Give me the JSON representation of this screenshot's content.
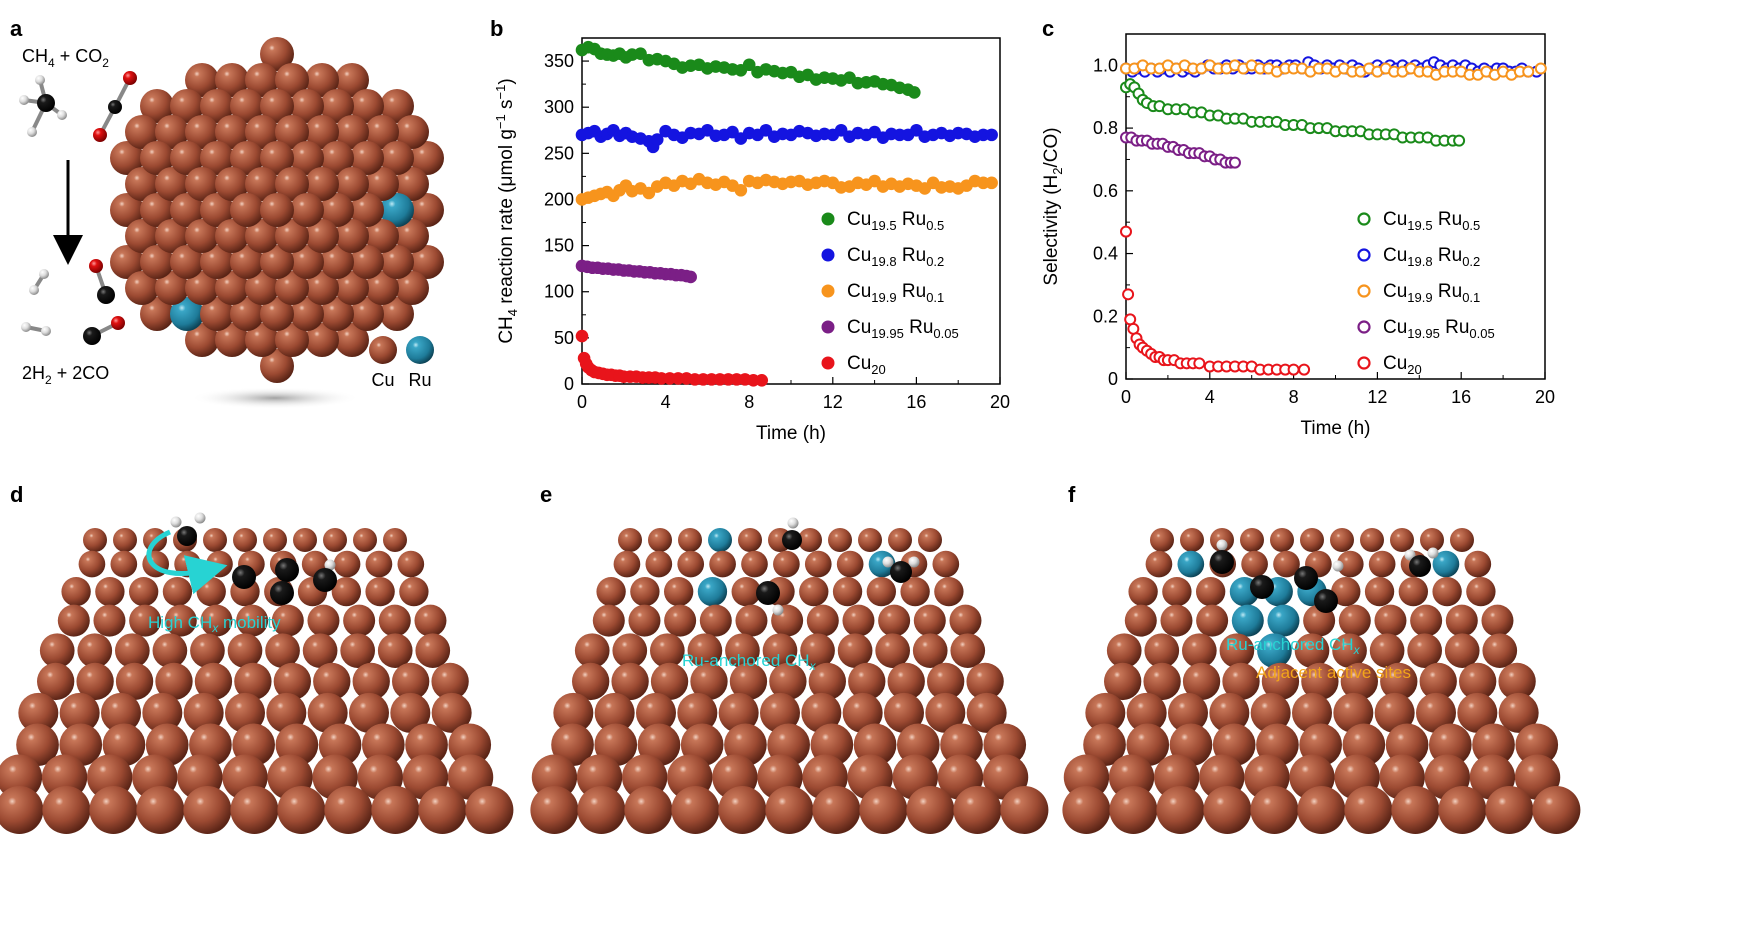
{
  "panels": {
    "a": "a",
    "b": "b",
    "c": "c",
    "d": "d",
    "e": "e",
    "f": "f"
  },
  "panel_a": {
    "reactants_main": "CH",
    "reactants_sub": "4",
    "reactants_rest": " + CO",
    "reactants_sub2": "2",
    "products_main": "2H",
    "products_sub": "2",
    "products_rest": " + 2CO",
    "legend_cu": "Cu",
    "legend_ru": "Ru"
  },
  "panel_d": {
    "label_main": "High CH",
    "label_sub": "x",
    "label_rest": " mobility"
  },
  "panel_e": {
    "label_main": "Ru-anchored CH",
    "label_sub": "x"
  },
  "panel_f": {
    "label_main": "Ru-anchored CH",
    "label_sub": "x",
    "label_2": "Adjacent active sites"
  },
  "colors": {
    "cu": "#a8523a",
    "ru": "#2c8fb0",
    "carbon": "#111111",
    "oxygen": "#e01010",
    "hydrogen": "#e8e8e8",
    "green": "#1a8a1a",
    "blue": "#1414e0",
    "orange": "#f7941d",
    "purple": "#7b1f86",
    "red": "#e8141b",
    "annotation_cyan": "#27d3d3",
    "annotation_gold": "#f2a51a"
  },
  "chart_data": [
    {
      "panel": "b",
      "type": "scatter",
      "xlabel": "Time (h)",
      "ylabel": "CH4 reaction rate (μmol g−1 s−1)",
      "xlim": [
        0,
        20
      ],
      "ylim": [
        0,
        375
      ],
      "xticks": [
        "0",
        "4",
        "8",
        "12",
        "16",
        "20"
      ],
      "yticks": [
        "0",
        "50",
        "100",
        "150",
        "200",
        "250",
        "300",
        "350"
      ],
      "marker": "filled",
      "legend_position": "right",
      "series": [
        {
          "name": "Cu19.5 Ru0.5",
          "base": "Cu",
          "sub1": "19.5",
          "el2": " Ru",
          "sub2": "0.5",
          "color": "#1a8a1a",
          "x": [
            0,
            0.3,
            0.6,
            0.9,
            1.2,
            1.5,
            1.8,
            2.1,
            2.4,
            2.8,
            3.2,
            3.6,
            4.0,
            4.4,
            4.8,
            5.2,
            5.6,
            6.0,
            6.4,
            6.8,
            7.2,
            7.6,
            8.0,
            8.4,
            8.8,
            9.2,
            9.6,
            10.0,
            10.4,
            10.8,
            11.2,
            11.6,
            12.0,
            12.4,
            12.8,
            13.2,
            13.6,
            14.0,
            14.4,
            14.8,
            15.2,
            15.6,
            15.9
          ],
          "y": [
            362,
            365,
            363,
            358,
            357,
            356,
            358,
            354,
            357,
            358,
            351,
            352,
            350,
            347,
            343,
            345,
            346,
            342,
            344,
            343,
            341,
            340,
            346,
            338,
            341,
            339,
            337,
            338,
            333,
            335,
            330,
            332,
            331,
            329,
            332,
            326,
            327,
            328,
            325,
            324,
            321,
            319,
            316
          ]
        },
        {
          "name": "Cu19.8 Ru0.2",
          "base": "Cu",
          "sub1": "19.8",
          "el2": " Ru",
          "sub2": "0.2",
          "color": "#1414e0",
          "x": [
            0,
            0.3,
            0.6,
            0.9,
            1.2,
            1.5,
            1.8,
            2.1,
            2.4,
            2.8,
            3.2,
            3.4,
            3.6,
            4.0,
            4.4,
            4.8,
            5.2,
            5.6,
            6.0,
            6.4,
            6.8,
            7.2,
            7.6,
            8.0,
            8.4,
            8.8,
            9.2,
            9.6,
            10.0,
            10.4,
            10.8,
            11.2,
            11.6,
            12.0,
            12.4,
            12.8,
            13.2,
            13.6,
            14.0,
            14.4,
            14.8,
            15.2,
            15.6,
            16.0,
            16.4,
            16.8,
            17.2,
            17.6,
            18.0,
            18.4,
            18.8,
            19.2,
            19.6
          ],
          "y": [
            270,
            272,
            274,
            268,
            271,
            275,
            269,
            272,
            268,
            266,
            263,
            257,
            265,
            274,
            270,
            267,
            272,
            271,
            275,
            269,
            270,
            273,
            266,
            272,
            270,
            275,
            268,
            271,
            270,
            274,
            272,
            269,
            271,
            270,
            275,
            268,
            272,
            270,
            273,
            267,
            271,
            270,
            270,
            275,
            268,
            270,
            272,
            269,
            272,
            271,
            268,
            270,
            270
          ]
        },
        {
          "name": "Cu19.9 Ru0.1",
          "base": "Cu",
          "sub1": "19.9",
          "el2": " Ru",
          "sub2": "0.1",
          "color": "#f7941d",
          "x": [
            0,
            0.3,
            0.6,
            0.9,
            1.2,
            1.5,
            1.8,
            2.1,
            2.4,
            2.8,
            3.2,
            3.6,
            4.0,
            4.4,
            4.8,
            5.2,
            5.6,
            6.0,
            6.4,
            6.8,
            7.2,
            7.6,
            8.0,
            8.4,
            8.8,
            9.2,
            9.6,
            10.0,
            10.4,
            10.8,
            11.2,
            11.6,
            12.0,
            12.4,
            12.8,
            13.2,
            13.6,
            14.0,
            14.4,
            14.8,
            15.2,
            15.6,
            16.0,
            16.4,
            16.8,
            17.2,
            17.6,
            18.0,
            18.4,
            18.8,
            19.2,
            19.6
          ],
          "y": [
            200,
            202,
            204,
            206,
            208,
            204,
            210,
            215,
            209,
            212,
            207,
            214,
            218,
            215,
            220,
            217,
            222,
            218,
            216,
            219,
            215,
            210,
            220,
            218,
            221,
            219,
            217,
            219,
            220,
            216,
            218,
            220,
            218,
            213,
            214,
            218,
            216,
            220,
            214,
            217,
            214,
            217,
            215,
            212,
            218,
            213,
            214,
            212,
            215,
            220,
            218,
            218
          ]
        },
        {
          "name": "Cu19.95 Ru0.05",
          "base": "Cu",
          "sub1": "19.95",
          "el2": " Ru",
          "sub2": "0.05",
          "color": "#7b1f86",
          "x": [
            0,
            0.25,
            0.5,
            0.75,
            1.0,
            1.25,
            1.5,
            1.75,
            2.0,
            2.25,
            2.5,
            2.75,
            3.0,
            3.25,
            3.5,
            3.75,
            4.0,
            4.25,
            4.5,
            4.75,
            5.0,
            5.2
          ],
          "y": [
            128,
            127,
            126,
            126,
            125,
            125,
            124,
            124,
            123,
            123,
            122,
            122,
            121,
            121,
            120,
            120,
            119,
            119,
            118,
            118,
            117,
            116
          ]
        },
        {
          "name": "Cu20",
          "base": "Cu",
          "sub1": "20",
          "el2": "",
          "sub2": "",
          "color": "#e8141b",
          "x": [
            0,
            0.1,
            0.2,
            0.3,
            0.45,
            0.6,
            0.8,
            1.0,
            1.2,
            1.4,
            1.6,
            1.8,
            2.0,
            2.3,
            2.6,
            2.9,
            3.2,
            3.5,
            3.8,
            4.2,
            4.6,
            5.0,
            5.4,
            5.8,
            6.2,
            6.6,
            7.0,
            7.4,
            7.8,
            8.2,
            8.6
          ],
          "y": [
            52,
            28,
            22,
            18,
            15,
            13,
            12,
            11,
            10,
            10,
            9,
            9,
            8,
            8,
            8,
            7,
            7,
            7,
            6,
            6,
            6,
            6,
            5,
            5,
            5,
            5,
            5,
            5,
            5,
            4,
            4
          ]
        }
      ]
    },
    {
      "panel": "c",
      "type": "scatter",
      "xlabel": "Time (h)",
      "ylabel": "Selectivity (H2/CO)",
      "xlim": [
        0,
        20
      ],
      "ylim": [
        0,
        1.1
      ],
      "xticks": [
        "0",
        "4",
        "8",
        "12",
        "16",
        "20"
      ],
      "yticks": [
        "0",
        "0.2",
        "0.4",
        "0.6",
        "0.8",
        "1.0"
      ],
      "marker": "open",
      "legend_position": "right",
      "series": [
        {
          "name": "Cu19.5 Ru0.5",
          "base": "Cu",
          "sub1": "19.5",
          "el2": " Ru",
          "sub2": "0.5",
          "color": "#1a8a1a",
          "x": [
            0,
            0.2,
            0.4,
            0.6,
            0.8,
            1.0,
            1.3,
            1.6,
            2.0,
            2.4,
            2.8,
            3.2,
            3.6,
            4.0,
            4.4,
            4.8,
            5.2,
            5.6,
            6.0,
            6.4,
            6.8,
            7.2,
            7.6,
            8.0,
            8.4,
            8.8,
            9.2,
            9.6,
            10.0,
            10.4,
            10.8,
            11.2,
            11.6,
            12.0,
            12.4,
            12.8,
            13.2,
            13.6,
            14.0,
            14.4,
            14.8,
            15.2,
            15.6,
            15.9
          ],
          "y": [
            0.93,
            0.94,
            0.93,
            0.91,
            0.89,
            0.88,
            0.87,
            0.87,
            0.86,
            0.86,
            0.86,
            0.85,
            0.85,
            0.84,
            0.84,
            0.83,
            0.83,
            0.83,
            0.82,
            0.82,
            0.82,
            0.82,
            0.81,
            0.81,
            0.81,
            0.8,
            0.8,
            0.8,
            0.79,
            0.79,
            0.79,
            0.79,
            0.78,
            0.78,
            0.78,
            0.78,
            0.77,
            0.77,
            0.77,
            0.77,
            0.76,
            0.76,
            0.76,
            0.76
          ]
        },
        {
          "name": "Cu19.8 Ru0.2",
          "base": "Cu",
          "sub1": "19.8",
          "el2": " Ru",
          "sub2": "0.2",
          "color": "#1414e0",
          "x": [
            0,
            0.3,
            0.6,
            0.9,
            1.2,
            1.5,
            1.8,
            2.1,
            2.4,
            2.7,
            3.0,
            3.3,
            3.6,
            3.9,
            4.2,
            4.5,
            4.8,
            5.1,
            5.4,
            5.7,
            6.0,
            6.3,
            6.6,
            6.9,
            7.2,
            7.5,
            7.8,
            8.1,
            8.4,
            8.7,
            9.0,
            9.3,
            9.6,
            9.9,
            10.2,
            10.5,
            10.8,
            11.1,
            11.4,
            11.7,
            12.0,
            12.3,
            12.6,
            12.9,
            13.2,
            13.5,
            13.8,
            14.1,
            14.4,
            14.7,
            15.0,
            15.3,
            15.6,
            15.9,
            16.2,
            16.5,
            16.8,
            17.1,
            17.4,
            17.7,
            18.0,
            18.3,
            18.6,
            18.9,
            19.2,
            19.6
          ],
          "y": [
            0.99,
            0.98,
            0.99,
            0.98,
            0.99,
            0.98,
            0.99,
            0.98,
            0.99,
            0.98,
            0.99,
            0.98,
            0.99,
            1.0,
            0.99,
            0.99,
            1.0,
            0.99,
            1.0,
            0.99,
            0.99,
            1.0,
            0.99,
            1.0,
            1.0,
            0.99,
            1.0,
            1.0,
            0.99,
            1.01,
            1.0,
            0.99,
            1.0,
            0.99,
            1.0,
            0.99,
            1.0,
            0.99,
            0.98,
            0.99,
            1.0,
            0.99,
            1.0,
            0.99,
            1.0,
            0.99,
            1.0,
            0.99,
            1.0,
            1.01,
            1.0,
            0.99,
            1.0,
            0.99,
            1.0,
            0.99,
            0.98,
            0.99,
            0.98,
            0.99,
            0.99,
            0.98,
            0.98,
            0.99,
            0.98,
            0.98
          ]
        },
        {
          "name": "Cu19.9 Ru0.1",
          "base": "Cu",
          "sub1": "19.9",
          "el2": " Ru",
          "sub2": "0.1",
          "color": "#f7941d",
          "x": [
            0,
            0.4,
            0.8,
            1.2,
            1.6,
            2.0,
            2.4,
            2.8,
            3.2,
            3.6,
            4.0,
            4.4,
            4.8,
            5.2,
            5.6,
            6.0,
            6.4,
            6.8,
            7.2,
            7.6,
            8.0,
            8.4,
            8.8,
            9.2,
            9.6,
            10.0,
            10.4,
            10.8,
            11.2,
            11.6,
            12.0,
            12.4,
            12.8,
            13.2,
            13.6,
            14.0,
            14.4,
            14.8,
            15.2,
            15.6,
            16.0,
            16.4,
            16.8,
            17.2,
            17.6,
            18.0,
            18.4,
            18.8,
            19.2,
            19.8
          ],
          "y": [
            0.99,
            0.99,
            1.0,
            0.99,
            0.99,
            1.0,
            0.99,
            1.0,
            0.99,
            0.99,
            1.0,
            0.99,
            0.99,
            1.0,
            0.99,
            1.0,
            0.99,
            0.99,
            0.98,
            0.99,
            0.99,
            0.99,
            0.98,
            0.99,
            0.99,
            0.98,
            0.99,
            0.98,
            0.98,
            0.99,
            0.98,
            0.99,
            0.98,
            0.98,
            0.99,
            0.98,
            0.98,
            0.97,
            0.98,
            0.98,
            0.98,
            0.97,
            0.97,
            0.98,
            0.97,
            0.98,
            0.97,
            0.98,
            0.98,
            0.99
          ]
        },
        {
          "name": "Cu19.95 Ru0.05",
          "base": "Cu",
          "sub1": "19.95",
          "el2": " Ru",
          "sub2": "0.05",
          "color": "#7b1f86",
          "x": [
            0,
            0.25,
            0.5,
            0.75,
            1.0,
            1.25,
            1.5,
            1.75,
            2.0,
            2.25,
            2.5,
            2.75,
            3.0,
            3.25,
            3.5,
            3.75,
            4.0,
            4.25,
            4.5,
            4.75,
            5.0,
            5.2
          ],
          "y": [
            0.77,
            0.77,
            0.76,
            0.76,
            0.76,
            0.75,
            0.75,
            0.75,
            0.74,
            0.74,
            0.73,
            0.73,
            0.72,
            0.72,
            0.72,
            0.71,
            0.71,
            0.7,
            0.7,
            0.69,
            0.69,
            0.69
          ]
        },
        {
          "name": "Cu20",
          "base": "Cu",
          "sub1": "20",
          "el2": "",
          "sub2": "",
          "color": "#e8141b",
          "x": [
            0,
            0.1,
            0.2,
            0.35,
            0.5,
            0.65,
            0.8,
            1.0,
            1.2,
            1.4,
            1.6,
            1.8,
            2.0,
            2.3,
            2.6,
            2.9,
            3.2,
            3.5,
            4.0,
            4.4,
            4.8,
            5.2,
            5.6,
            6.0,
            6.4,
            6.8,
            7.2,
            7.6,
            8.0,
            8.5
          ],
          "y": [
            0.47,
            0.27,
            0.19,
            0.16,
            0.13,
            0.11,
            0.1,
            0.09,
            0.08,
            0.07,
            0.07,
            0.06,
            0.06,
            0.06,
            0.05,
            0.05,
            0.05,
            0.05,
            0.04,
            0.04,
            0.04,
            0.04,
            0.04,
            0.04,
            0.03,
            0.03,
            0.03,
            0.03,
            0.03,
            0.03
          ]
        }
      ]
    }
  ]
}
